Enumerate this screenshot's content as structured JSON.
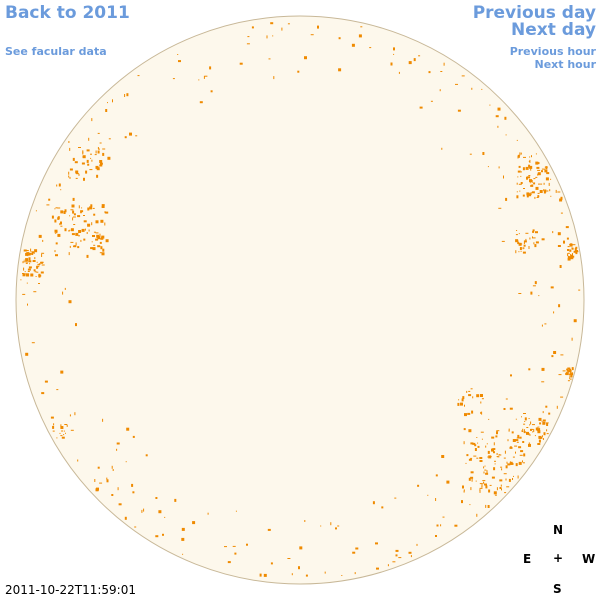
{
  "nav": {
    "back": "Back to 2011",
    "facular": "See facular data",
    "prev_day": "Previous day",
    "next_day": "Next day",
    "prev_hour": "Previous hour",
    "next_hour": "Next hour"
  },
  "timestamp": "2011-10-22T11:59:01",
  "compass": {
    "north": "N",
    "east": "E",
    "center": "+",
    "west": "W",
    "south": "S"
  },
  "colors": {
    "link": "#6b9bdc",
    "disk_fill": "#fdf8ec",
    "disk_edge": "#c8b898",
    "facula": "#ef8a00"
  }
}
